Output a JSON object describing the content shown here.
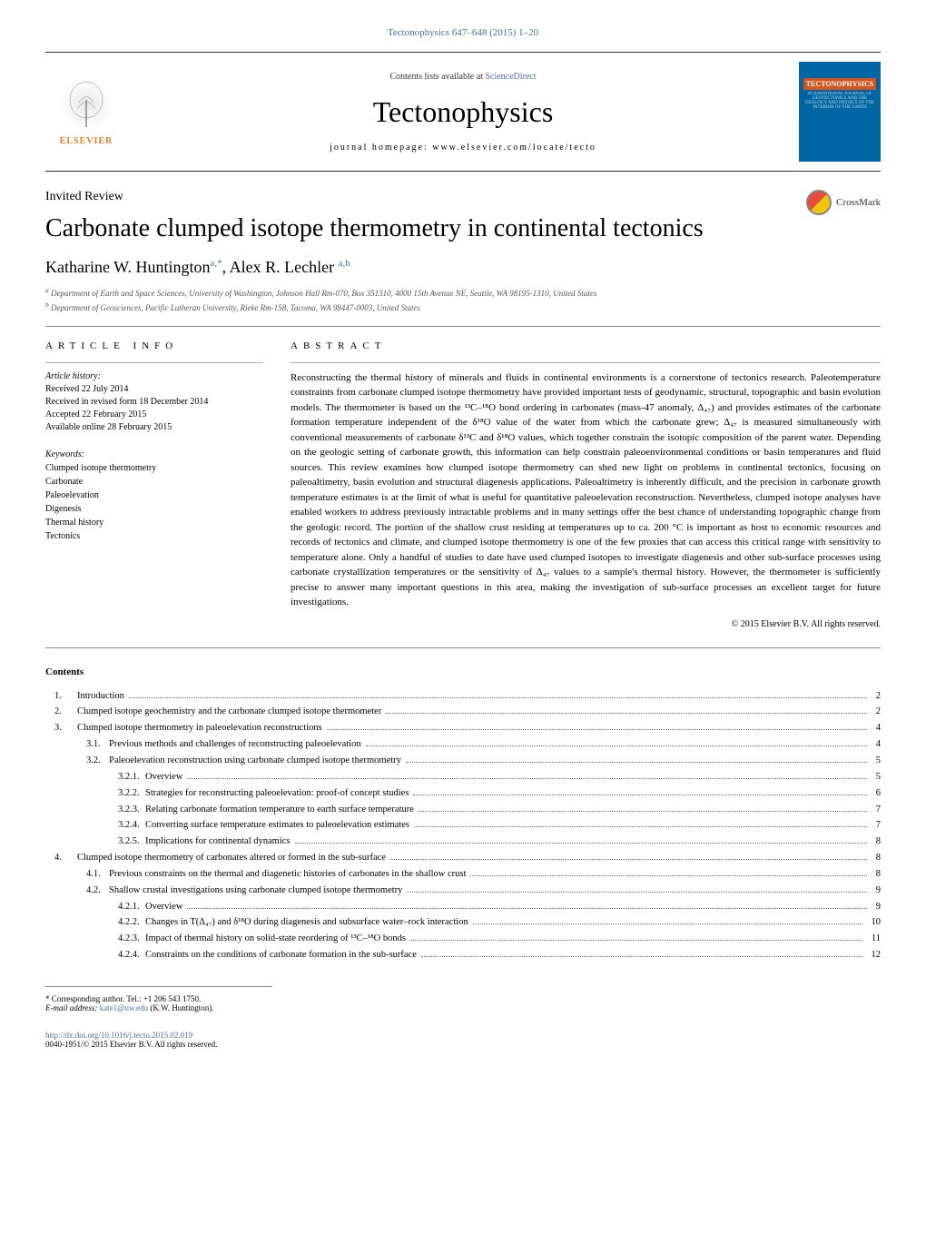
{
  "header": {
    "citation": "Tectonophysics 647–648 (2015) 1–20",
    "contents_available": "Contents lists available at ",
    "sciencedirect": "ScienceDirect",
    "journal_name": "Tectonophysics",
    "homepage_label": "journal homepage: www.elsevier.com/locate/tecto",
    "publisher": "ELSEVIER",
    "cover_title": "TECTONOPHYSICS"
  },
  "crossmark_label": "CrossMark",
  "article": {
    "type": "Invited Review",
    "title": "Carbonate clumped isotope thermometry in continental tectonics",
    "authors_html": "Katharine W. Huntington",
    "author1_sup": "a,*",
    "authors_sep": ", Alex R. Lechler ",
    "author2_sup": "a,b",
    "affiliations": [
      "Department of Earth and Space Sciences, University of Washington, Johnson Hall Rm-070, Box 351310, 4000 15th Avenue NE, Seattle, WA 98195-1310, United States",
      "Department of Geosciences, Pacific Lutheran University, Rieke Rm-158, Tacoma, WA 98447-0003, United States"
    ]
  },
  "info": {
    "heading": "ARTICLE INFO",
    "history_label": "Article history:",
    "history": [
      "Received 22 July 2014",
      "Received in revised form 18 December 2014",
      "Accepted 22 February 2015",
      "Available online 28 February 2015"
    ],
    "keywords_label": "Keywords:",
    "keywords": [
      "Clumped isotope thermometry",
      "Carbonate",
      "Paleoelevation",
      "Digenesis",
      "Thermal history",
      "Tectonics"
    ]
  },
  "abstract": {
    "heading": "ABSTRACT",
    "text": "Reconstructing the thermal history of minerals and fluids in continental environments is a cornerstone of tectonics research. Paleotemperature constraints from carbonate clumped isotope thermometry have provided important tests of geodynamic, structural, topographic and basin evolution models. The thermometer is based on the ¹³C–¹⁸O bond ordering in carbonates (mass-47 anomaly, Δ₄₇) and provides estimates of the carbonate formation temperature independent of the δ¹⁸O value of the water from which the carbonate grew; Δ₄₇ is measured simultaneously with conventional measurements of carbonate δ¹³C and δ¹⁸O values, which together constrain the isotopic composition of the parent water. Depending on the geologic setting of carbonate growth, this information can help constrain paleoenvironmental conditions or basin temperatures and fluid sources. This review examines how clumped isotope thermometry can shed new light on problems in continental tectonics, focusing on paleoaltimetry, basin evolution and structural diagenesis applications. Paleoaltimetry is inherently difficult, and the precision in carbonate growth temperature estimates is at the limit of what is useful for quantitative paleoelevation reconstruction. Nevertheless, clumped isotope analyses have enabled workers to address previously intractable problems and in many settings offer the best chance of understanding topographic change from the geologic record. The portion of the shallow crust residing at temperatures up to ca. 200 °C is important as host to economic resources and records of tectonics and climate, and clumped isotope thermometry is one of the few proxies that can access this critical range with sensitivity to temperature alone. Only a handful of studies to date have used clumped isotopes to investigate diagenesis and other sub-surface processes using carbonate crystallization temperatures or the sensitivity of Δ₄₇ values to a sample's thermal history. However, the thermometer is sufficiently precise to answer many important questions in this area, making the investigation of sub-surface processes an excellent target for future investigations.",
    "copyright": "© 2015 Elsevier B.V. All rights reserved."
  },
  "contents": {
    "heading": "Contents",
    "items": [
      {
        "level": 1,
        "num": "1.",
        "title": "Introduction",
        "page": "2"
      },
      {
        "level": 1,
        "num": "2.",
        "title": "Clumped isotope geochemistry and the carbonate clumped isotope thermometer",
        "page": "2"
      },
      {
        "level": 1,
        "num": "3.",
        "title": "Clumped isotope thermometry in paleoelevation reconstructions",
        "page": "4"
      },
      {
        "level": 2,
        "num": "3.1.",
        "title": "Previous methods and challenges of reconstructing paleoelevation",
        "page": "4"
      },
      {
        "level": 2,
        "num": "3.2.",
        "title": "Paleoelevation reconstruction using carbonate clumped isotope thermometry",
        "page": "5"
      },
      {
        "level": 3,
        "num": "3.2.1.",
        "title": "Overview",
        "page": "5"
      },
      {
        "level": 3,
        "num": "3.2.2.",
        "title": "Strategies for reconstructing paleoelevation: proof-of concept studies",
        "page": "6"
      },
      {
        "level": 3,
        "num": "3.2.3.",
        "title": "Relating carbonate formation temperature to earth surface temperature",
        "page": "7"
      },
      {
        "level": 3,
        "num": "3.2.4.",
        "title": "Converting surface temperature estimates to paleoelevation estimates",
        "page": "7"
      },
      {
        "level": 3,
        "num": "3.2.5.",
        "title": "Implications for continental dynamics",
        "page": "8"
      },
      {
        "level": 1,
        "num": "4.",
        "title": "Clumped isotope thermometry of carbonates altered or formed in the sub-surface",
        "page": "8"
      },
      {
        "level": 2,
        "num": "4.1.",
        "title": "Previous constraints on the thermal and diagenetic histories of carbonates in the shallow crust",
        "page": "8"
      },
      {
        "level": 2,
        "num": "4.2.",
        "title": "Shallow crustal investigations using carbonate clumped isotope thermometry",
        "page": "9"
      },
      {
        "level": 3,
        "num": "4.2.1.",
        "title": "Overview",
        "page": "9"
      },
      {
        "level": 3,
        "num": "4.2.2.",
        "title": "Changes in T(Δ₄₇) and δ¹⁸O during diagenesis and subsurface water–rock interaction",
        "page": "10"
      },
      {
        "level": 3,
        "num": "4.2.3.",
        "title": "Impact of thermal history on solid-state reordering of ¹³C–¹⁸O bonds",
        "page": "11"
      },
      {
        "level": 3,
        "num": "4.2.4.",
        "title": "Constraints on the conditions of carbonate formation in the sub-surface",
        "page": "12"
      }
    ]
  },
  "footer": {
    "corresponding": "* Corresponding author. Tel.: +1 206 543 1750.",
    "email_label": "E-mail address: ",
    "email": "kate1@uw.edu",
    "email_name": " (K.W. Huntington).",
    "doi": "http://dx.doi.org/10.1016/j.tecto.2015.02.019",
    "issn_copyright": "0040-1951/© 2015 Elsevier B.V. All rights reserved."
  }
}
